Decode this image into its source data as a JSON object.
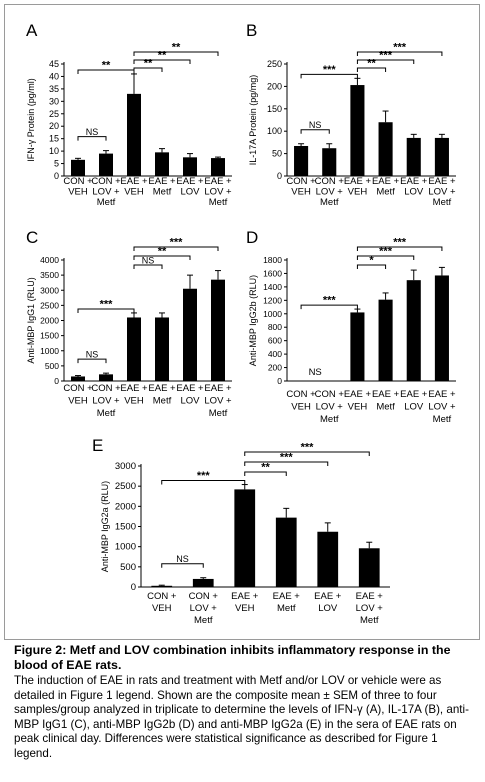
{
  "chart_data": [
    {
      "panel": "A",
      "type": "bar",
      "ylabel": "IFN-γ Protein (pg/ml)",
      "ylim": [
        0,
        45
      ],
      "yticks": [
        0,
        5,
        10,
        15,
        20,
        25,
        30,
        35,
        40,
        45
      ],
      "categories": [
        "CON + VEH",
        "CON + LOV + Metf",
        "EAE + VEH",
        "EAE + Metf",
        "EAE + LOV",
        "EAE + LOV + Metf"
      ],
      "values": [
        6.5,
        9,
        33,
        9.5,
        7.5,
        7.2
      ],
      "errors": [
        0.6,
        1.2,
        8,
        1.5,
        1.5,
        0.4
      ],
      "significance": [
        {
          "from": 0,
          "to": 1,
          "label": "NS"
        },
        {
          "from": 0,
          "to": 2,
          "label": "**"
        },
        {
          "from": 2,
          "to": 3,
          "label": "**"
        },
        {
          "from": 2,
          "to": 4,
          "label": "**"
        },
        {
          "from": 2,
          "to": 5,
          "label": "**"
        }
      ]
    },
    {
      "panel": "B",
      "type": "bar",
      "ylabel": "IL-17A Protein (pg/mg)",
      "ylim": [
        0,
        250
      ],
      "yticks": [
        0,
        50,
        100,
        150,
        200,
        250
      ],
      "categories": [
        "CON + VEH",
        "CON + LOV + Metf",
        "EAE + VEH",
        "EAE + Metf",
        "EAE + LOV",
        "EAE + LOV + Metf"
      ],
      "values": [
        67,
        62,
        203,
        120,
        85,
        85
      ],
      "errors": [
        5,
        10,
        15,
        25,
        8,
        8
      ],
      "significance": [
        {
          "from": 0,
          "to": 1,
          "label": "NS"
        },
        {
          "from": 0,
          "to": 2,
          "label": "***"
        },
        {
          "from": 2,
          "to": 3,
          "label": "**"
        },
        {
          "from": 2,
          "to": 4,
          "label": "***"
        },
        {
          "from": 2,
          "to": 5,
          "label": "***"
        }
      ]
    },
    {
      "panel": "C",
      "type": "bar",
      "ylabel": "Anti-MBP IgG1 (RLU)",
      "ylim": [
        0,
        4000
      ],
      "yticks": [
        0,
        500,
        1000,
        1500,
        2000,
        2500,
        3000,
        3500,
        4000
      ],
      "categories": [
        "CON + VEH",
        "CON + LOV + Metf",
        "EAE + VEH",
        "EAE + Metf",
        "EAE + LOV",
        "EAE + LOV + Metf"
      ],
      "values": [
        150,
        220,
        2100,
        2100,
        3050,
        3350
      ],
      "errors": [
        30,
        40,
        150,
        150,
        450,
        300
      ],
      "significance": [
        {
          "from": 0,
          "to": 1,
          "label": "NS"
        },
        {
          "from": 0,
          "to": 2,
          "label": "***"
        },
        {
          "from": 2,
          "to": 3,
          "label": "NS"
        },
        {
          "from": 2,
          "to": 4,
          "label": "**"
        },
        {
          "from": 2,
          "to": 5,
          "label": "***"
        }
      ]
    },
    {
      "panel": "D",
      "type": "bar",
      "ylabel": "Anti-MBP IgG2b (RLU)",
      "ylim": [
        0,
        1800
      ],
      "yticks": [
        0,
        200,
        400,
        600,
        800,
        1000,
        1200,
        1400,
        1600,
        1800
      ],
      "categories": [
        "CON + VEH",
        "CON + LOV + Metf",
        "EAE + VEH",
        "EAE + Metf",
        "EAE + LOV",
        "EAE + LOV + Metf"
      ],
      "values": [
        0,
        0,
        1020,
        1210,
        1500,
        1570
      ],
      "errors": [
        0,
        0,
        50,
        100,
        150,
        120
      ],
      "value_notes": [
        {
          "index": 0,
          "label": "NS"
        }
      ],
      "significance": [
        {
          "from": 0,
          "to": 2,
          "label": "***"
        },
        {
          "from": 2,
          "to": 3,
          "label": "*"
        },
        {
          "from": 2,
          "to": 4,
          "label": "***"
        },
        {
          "from": 2,
          "to": 5,
          "label": "***"
        }
      ]
    },
    {
      "panel": "E",
      "type": "bar",
      "ylabel": "Anti-MBP IgG2a (RLU)",
      "ylim": [
        0,
        3000
      ],
      "yticks": [
        0,
        500,
        1000,
        1500,
        2000,
        2500,
        3000
      ],
      "categories": [
        "CON + VEH",
        "CON + LOV + Metf",
        "EAE + VEH",
        "EAE + Metf",
        "EAE + LOV",
        "EAE + LOV + Metf"
      ],
      "values": [
        30,
        200,
        2420,
        1720,
        1370,
        960
      ],
      "errors": [
        15,
        30,
        120,
        230,
        220,
        150
      ],
      "significance": [
        {
          "from": 0,
          "to": 1,
          "label": "NS"
        },
        {
          "from": 0,
          "to": 2,
          "label": "***"
        },
        {
          "from": 2,
          "to": 3,
          "label": "**"
        },
        {
          "from": 2,
          "to": 4,
          "label": "***"
        },
        {
          "from": 2,
          "to": 5,
          "label": "***"
        }
      ]
    }
  ],
  "caption": {
    "title": "Figure 2: Metf and LOV combination inhibits inflammatory response in the blood of EAE rats.",
    "text": "The induction of EAE in rats and treatment with Metf and/or LOV or vehicle were as detailed in Figure 1 legend. Shown are the composite mean ± SEM of three to four samples/group analyzed in triplicate to determine the levels of IFN-γ (A), IL-17A (B), anti-MBP IgG1 (C), anti-MBP IgG2b (D) and anti-MBP IgG2a (E) in the sera of EAE rats on peak clinical day. Differences were statistical significance as described for Figure 1 legend."
  },
  "colors": {
    "bar": "#000000",
    "frame": "#9a9a9a"
  }
}
